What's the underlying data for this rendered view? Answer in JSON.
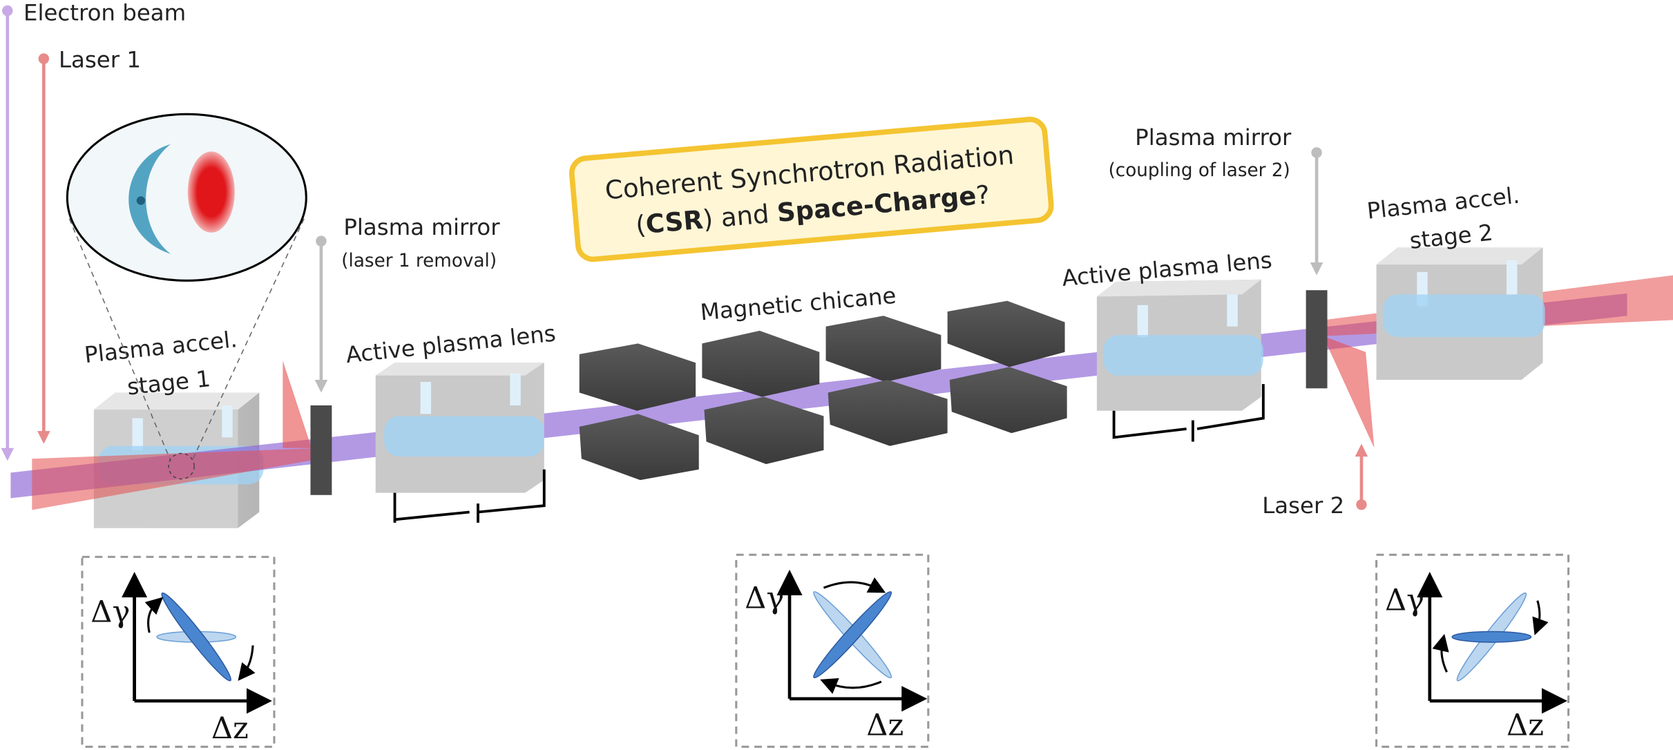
{
  "labels": {
    "electron_beam": "Electron beam",
    "laser_1": "Laser 1",
    "laser_2": "Laser 2",
    "stage_1": [
      "Plasma accel.",
      "stage 1"
    ],
    "mirror_1": {
      "title": "Plasma mirror",
      "note": "(laser 1 removal)"
    },
    "lens_1": "Active plasma lens",
    "chicane": "Magnetic chicane",
    "callout": {
      "line_1": "Coherent Synchrotron Radiation",
      "line_2": [
        "(",
        "CSR",
        ") and ",
        "Space-Charge",
        "?"
      ]
    },
    "mirror_2": {
      "title": "Plasma mirror",
      "note": "(coupling of laser 2)"
    },
    "lens_2": "Active plasma lens",
    "stage_2": [
      "Plasma accel.",
      "stage 2"
    ]
  },
  "phase_space": [
    {
      "y_label": "Δγ",
      "x_label": "Δz"
    },
    {
      "y_label": "Δγ",
      "x_label": "Δz"
    },
    {
      "y_label": "Δγ",
      "x_label": "Δz"
    }
  ]
}
